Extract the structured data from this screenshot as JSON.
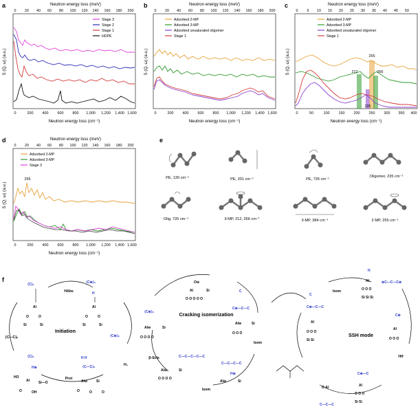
{
  "panels": {
    "a": {
      "letter": "a",
      "top_axis": "Neutron energy loss (meV)",
      "bottom_axis": "Neutron energy loss (cm⁻¹)",
      "y_axis": "S (Q, ω) (a.u.)",
      "legend": [
        "Stage 3",
        "Stage 2",
        "Stage 1",
        "HDPE"
      ]
    },
    "b": {
      "letter": "b",
      "top_axis": "Neutron energy loss (meV)",
      "bottom_axis": "Neutron energy loss (cm⁻¹)",
      "y_axis": "S (Q, ω) (a.u.)",
      "legend": [
        "Adsorbed 2-MP",
        "Adsorbed 3-MP",
        "Adsorbed unsaturated oligomer",
        "Stage 1"
      ]
    },
    "c": {
      "letter": "c",
      "top_axis": "Neutron energy loss (meV)",
      "bottom_axis": "Neutron energy loss (cm⁻¹)",
      "y_axis": "S (Q, ω) (a.u.)",
      "legend": [
        "Adsorbed 2-MP",
        "Adsorbed 3-MP",
        "Adsorbed unsaturated oligomer",
        "Stage 1"
      ],
      "annotations": [
        "255",
        "212",
        "266",
        "235"
      ]
    },
    "d": {
      "letter": "d",
      "top_axis": "Neutron energy loss (meV)",
      "bottom_axis": "Neutron energy loss (cm⁻¹)",
      "y_axis": "S (Q, ω) (a.u.)",
      "legend": [
        "Adsorbed 2-MP",
        "Adsorbed 3-MP",
        "Stage 3"
      ],
      "annotations": [
        "255"
      ]
    },
    "e": {
      "letter": "e",
      "captions": [
        "PE, 130 cm⁻¹",
        "PE, 201 cm⁻¹",
        "PE, 726 cm⁻¹",
        "Oligomer, 235 cm⁻¹",
        "Olig, 726 cm⁻¹",
        "3-MP, 212, 266 cm⁻¹",
        "3-MP, 384 cm⁻¹",
        "2-MP, 255 cm⁻¹"
      ]
    },
    "f": {
      "letter": "f",
      "cycles": [
        "Initiation",
        "Cracking isomerization",
        "SSH mode"
      ],
      "arrows": [
        "HAbs",
        "Prot",
        "H₂",
        "β-Scis",
        "Isom",
        "Isom",
        "Isom",
        "Htf",
        "HAbs"
      ]
    }
  },
  "colors": {
    "stage3": "#e040d8",
    "stage2": "#2b2bb8",
    "stage1": "#d23a3a",
    "hdpe": "#111111",
    "mp2": "#e8a23a",
    "mp3": "#2e9a2e",
    "olig": "#8a3fd0",
    "blue": "#2a36c9"
  },
  "chart_data": [
    {
      "panel": "a",
      "type": "line",
      "xlabel": "Neutron energy loss (cm⁻¹)",
      "x2label": "Neutron energy loss (meV)",
      "ylabel": "S (Q, ω) (a.u.)",
      "xlim": [
        0,
        1600
      ],
      "x_ticks": [
        "0",
        "200",
        "400",
        "600",
        "800",
        "1,000",
        "1,200",
        "1,400",
        "1,600"
      ],
      "x2_ticks": [
        "0",
        "20",
        "40",
        "60",
        "80",
        "100",
        "120",
        "140",
        "160",
        "180",
        "200"
      ],
      "series": [
        {
          "name": "Stage 3",
          "values": []
        },
        {
          "name": "Stage 2",
          "values": []
        },
        {
          "name": "Stage 1",
          "values": []
        },
        {
          "name": "HDPE",
          "values": []
        }
      ]
    },
    {
      "panel": "b",
      "type": "line",
      "xlabel": "Neutron energy loss (cm⁻¹)",
      "x2label": "Neutron energy loss (meV)",
      "ylabel": "S (Q, ω) (a.u.)",
      "xlim": [
        0,
        1600
      ],
      "x_ticks": [
        "0",
        "200",
        "400",
        "600",
        "800",
        "1,000",
        "1,200",
        "1,400",
        "1,600"
      ],
      "x2_ticks": [
        "0",
        "20",
        "40",
        "60",
        "80",
        "100",
        "120",
        "140",
        "160",
        "180",
        "200"
      ],
      "series": [
        {
          "name": "Adsorbed 2-MP",
          "values": []
        },
        {
          "name": "Adsorbed 3-MP",
          "values": []
        },
        {
          "name": "Adsorbed unsaturated oligomer",
          "values": []
        },
        {
          "name": "Stage 1",
          "values": []
        }
      ]
    },
    {
      "panel": "c",
      "type": "line",
      "xlabel": "Neutron energy loss (cm⁻¹)",
      "x2label": "Neutron energy loss (meV)",
      "ylabel": "S (Q, ω) (a.u.)",
      "xlim": [
        0,
        400
      ],
      "x_ticks": [
        "0",
        "50",
        "100",
        "150",
        "200",
        "250",
        "300",
        "350",
        "400"
      ],
      "x2_ticks": [
        "0",
        "5",
        "10",
        "15",
        "20",
        "25",
        "30",
        "35",
        "40",
        "45",
        "50"
      ],
      "series": [
        {
          "name": "Adsorbed 2-MP",
          "values": []
        },
        {
          "name": "Adsorbed 3-MP",
          "values": []
        },
        {
          "name": "Adsorbed unsaturated oligomer",
          "values": []
        },
        {
          "name": "Stage 1",
          "values": []
        }
      ]
    },
    {
      "panel": "d",
      "type": "line",
      "xlabel": "Neutron energy loss (cm⁻¹)",
      "x2label": "Neutron energy loss (meV)",
      "ylabel": "S (Q, ω) (a.u.)",
      "xlim": [
        0,
        1600
      ],
      "x_ticks": [
        "0",
        "200",
        "400",
        "600",
        "800",
        "1,000",
        "1,200",
        "1,400",
        "1,600"
      ],
      "x2_ticks": [
        "0",
        "20",
        "40",
        "60",
        "80",
        "100",
        "120",
        "140",
        "160",
        "180",
        "200"
      ],
      "series": [
        {
          "name": "Adsorbed 2-MP",
          "values": []
        },
        {
          "name": "Adsorbed 3-MP",
          "values": []
        },
        {
          "name": "Stage 3",
          "values": []
        }
      ]
    }
  ]
}
